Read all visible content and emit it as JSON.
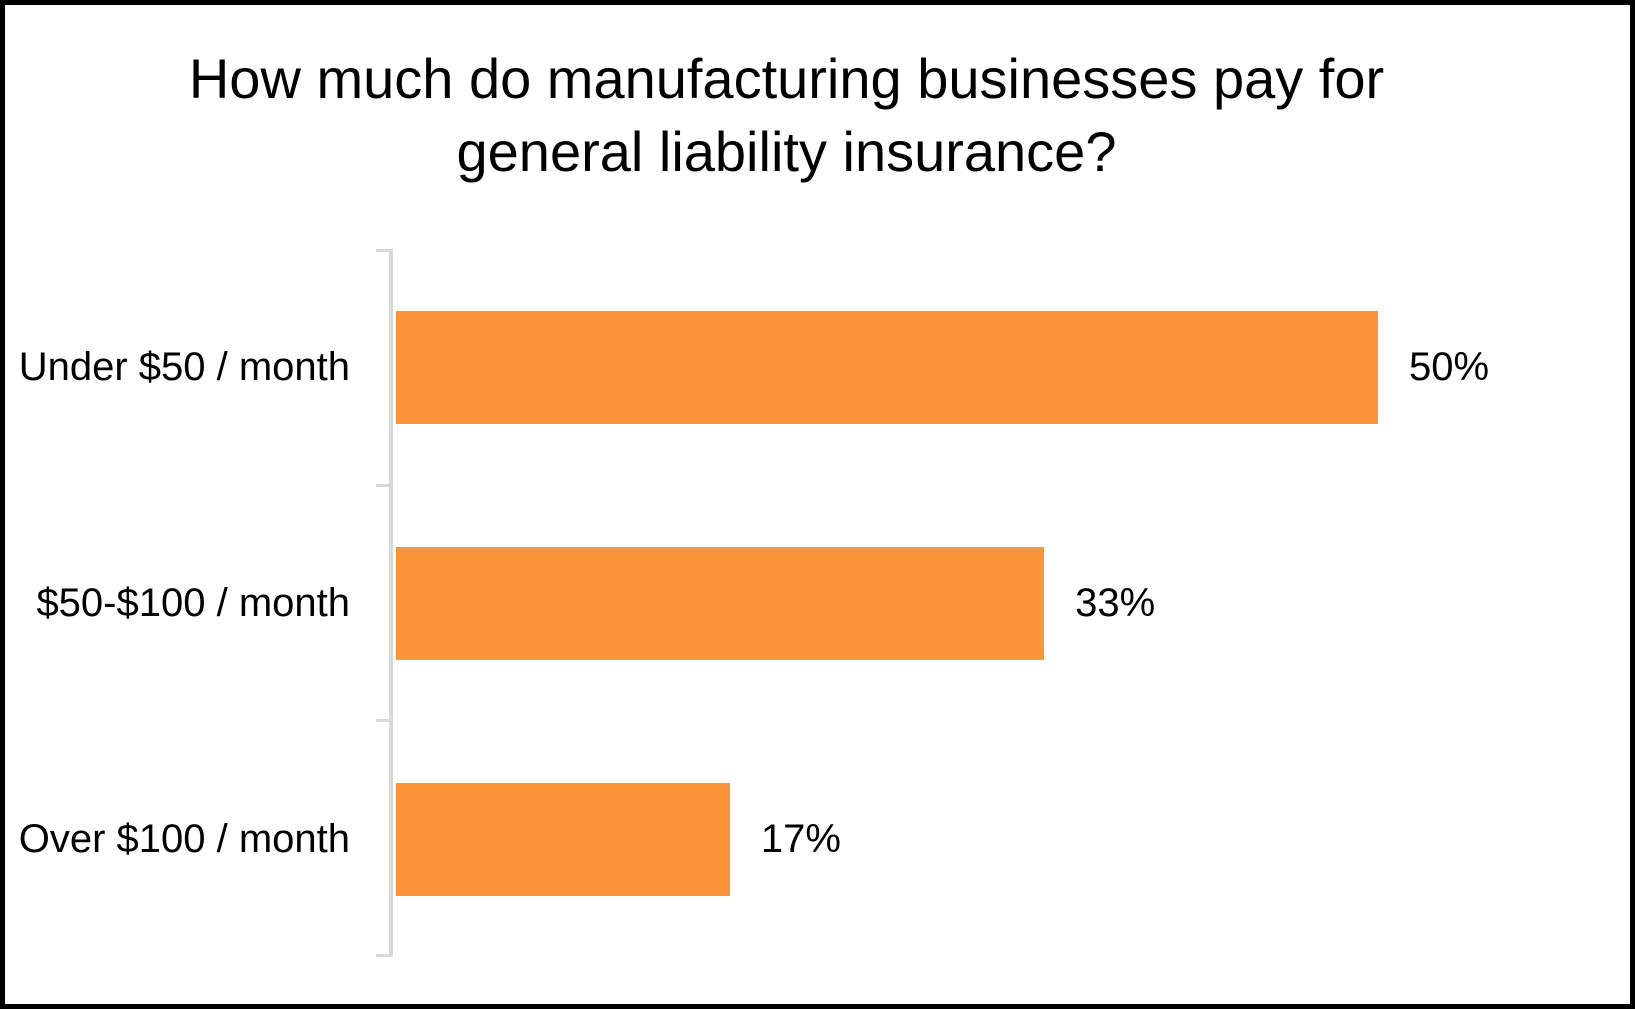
{
  "chart_data": {
    "type": "bar",
    "orientation": "horizontal",
    "title": "How much do manufacturing businesses pay for general liability insurance?",
    "title_lines": [
      "How much do manufacturing businesses pay for",
      "general liability insurance?"
    ],
    "categories": [
      "Under $50 / month",
      "$50-$100 / month",
      "Over $100 / month"
    ],
    "values": [
      50,
      33,
      17
    ],
    "data_labels": [
      "50%",
      "33%",
      "17%"
    ],
    "xlabel": "",
    "ylabel": "",
    "xlim_estimated": [
      0,
      60
    ],
    "grid": false,
    "legend": false,
    "bar_color": "#fa9639",
    "axis_line_color": "#d9d9d9",
    "text_color": "#000000",
    "background_color": "#ffffff",
    "border_color": "#000000"
  }
}
